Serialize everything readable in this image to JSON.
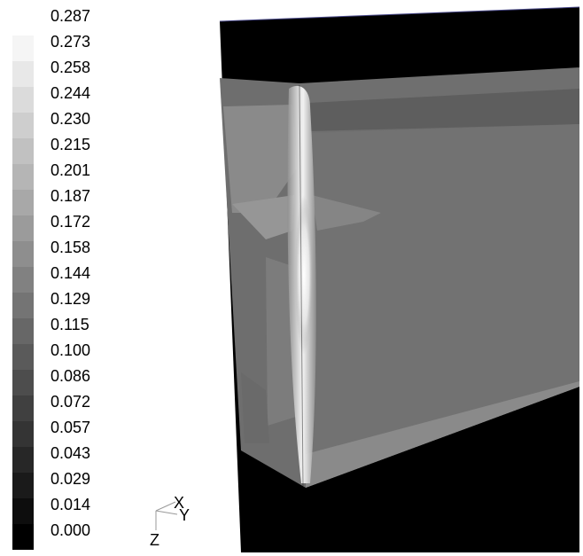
{
  "chart_data": {
    "type": "heatmap",
    "colormap": "grayscale",
    "legend_ticks": [
      "0.287",
      "0.273",
      "0.258",
      "0.244",
      "0.230",
      "0.215",
      "0.201",
      "0.187",
      "0.172",
      "0.158",
      "0.144",
      "0.129",
      "0.115",
      "0.100",
      "0.086",
      "0.072",
      "0.057",
      "0.043",
      "0.029",
      "0.014",
      "0.000"
    ],
    "range": [
      0.0,
      0.287
    ],
    "legend_placement": "left"
  },
  "axes_triad": {
    "x_label": "X",
    "y_label": "Y",
    "z_label": "Z"
  }
}
